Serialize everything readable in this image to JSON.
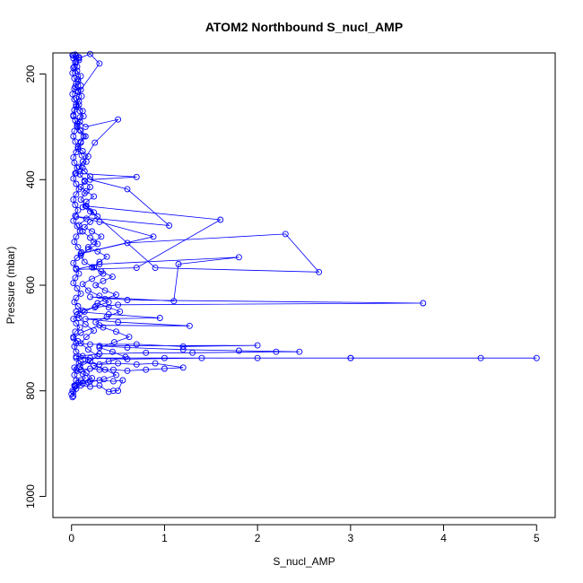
{
  "chart_data": {
    "type": "scatter",
    "title": "ATOM2 Northbound S_nucl_AMP",
    "xlabel": "S_nucl_AMP",
    "ylabel": "Pressure (mbar)",
    "xlim": [
      -0.2,
      5.2
    ],
    "ylim": [
      1040,
      160
    ],
    "y_reversed": true,
    "x_ticks": [
      0,
      1,
      2,
      3,
      4,
      5
    ],
    "y_ticks": [
      200,
      400,
      600,
      800,
      1000
    ],
    "grid": false,
    "legend": "none",
    "series": [
      {
        "style": "lines+markers",
        "color": "#0000ff",
        "points": [
          [
            0.02,
            810
          ],
          [
            0.01,
            800
          ],
          [
            0.03,
            790
          ],
          [
            0.05,
            780
          ],
          [
            0.1,
            780
          ],
          [
            0.2,
            782
          ],
          [
            0.3,
            780
          ],
          [
            0.45,
            782
          ],
          [
            0.55,
            780
          ],
          [
            0.5,
            800
          ],
          [
            0.45,
            800
          ],
          [
            0.4,
            802
          ],
          [
            0.3,
            790
          ],
          [
            0.2,
            792
          ],
          [
            0.1,
            790
          ],
          [
            0.03,
            770
          ],
          [
            0.05,
            760
          ],
          [
            0.1,
            760
          ],
          [
            0.2,
            758
          ],
          [
            0.3,
            760
          ],
          [
            0.45,
            760
          ],
          [
            0.6,
            762
          ],
          [
            0.8,
            760
          ],
          [
            1.0,
            758
          ],
          [
            1.2,
            756
          ],
          [
            0.9,
            748
          ],
          [
            0.7,
            750
          ],
          [
            0.5,
            748
          ],
          [
            0.3,
            750
          ],
          [
            0.1,
            745
          ],
          [
            0.05,
            738
          ],
          [
            1.0,
            738
          ],
          [
            2.0,
            738
          ],
          [
            3.0,
            738
          ],
          [
            4.4,
            738
          ],
          [
            5.0,
            738
          ],
          [
            3.0,
            738
          ],
          [
            1.4,
            738
          ],
          [
            0.6,
            740
          ],
          [
            0.2,
            738
          ],
          [
            0.05,
            735
          ],
          [
            0.3,
            730
          ],
          [
            0.8,
            728
          ],
          [
            1.3,
            728
          ],
          [
            2.2,
            726
          ],
          [
            2.45,
            726
          ],
          [
            1.8,
            724
          ],
          [
            1.2,
            722
          ],
          [
            0.6,
            718
          ],
          [
            0.3,
            715
          ],
          [
            2.0,
            714
          ],
          [
            1.2,
            716
          ],
          [
            0.7,
            712
          ],
          [
            0.2,
            712
          ],
          [
            0.05,
            710
          ],
          [
            0.02,
            700
          ],
          [
            0.1,
            690
          ],
          [
            0.3,
            676
          ],
          [
            1.27,
            677
          ],
          [
            0.5,
            670
          ],
          [
            0.15,
            664
          ],
          [
            0.95,
            662
          ],
          [
            0.4,
            655
          ],
          [
            0.05,
            650
          ],
          [
            0.25,
            642
          ],
          [
            0.5,
            637
          ],
          [
            3.78,
            634
          ],
          [
            0.6,
            628
          ],
          [
            0.2,
            622
          ],
          [
            1.1,
            630
          ],
          [
            1.15,
            560
          ],
          [
            1.8,
            547
          ],
          [
            0.3,
            560
          ],
          [
            0.05,
            570
          ],
          [
            0.7,
            567
          ],
          [
            1.6,
            476
          ],
          [
            0.15,
            450
          ],
          [
            0.9,
            567
          ],
          [
            2.66,
            575
          ],
          [
            2.3,
            503
          ],
          [
            0.6,
            520
          ],
          [
            0.1,
            540
          ],
          [
            0.88,
            508
          ],
          [
            0.3,
            480
          ],
          [
            0.05,
            470
          ],
          [
            1.05,
            487
          ],
          [
            0.6,
            418
          ],
          [
            0.2,
            400
          ],
          [
            0.7,
            395
          ],
          [
            0.05,
            388
          ],
          [
            0.25,
            330
          ],
          [
            0.5,
            286
          ],
          [
            0.15,
            300
          ],
          [
            0.02,
            280
          ],
          [
            0.1,
            230
          ],
          [
            0.3,
            180
          ],
          [
            0.2,
            162
          ],
          [
            0.08,
            170
          ],
          [
            0.02,
            165
          ]
        ]
      },
      {
        "style": "lines+markers",
        "color": "#0000ff",
        "points": [
          [
            0.01,
            812
          ],
          [
            0.02,
            802
          ],
          [
            0.04,
            792
          ],
          [
            0.08,
            784
          ],
          [
            0.15,
            776
          ],
          [
            0.12,
            768
          ],
          [
            0.06,
            762
          ],
          [
            0.03,
            756
          ],
          [
            0.08,
            748
          ],
          [
            0.18,
            742
          ],
          [
            0.12,
            734
          ],
          [
            0.05,
            726
          ],
          [
            0.03,
            716
          ],
          [
            0.07,
            706
          ],
          [
            0.02,
            698
          ],
          [
            0.04,
            688
          ],
          [
            0.09,
            680
          ],
          [
            0.05,
            672
          ],
          [
            0.02,
            664
          ],
          [
            0.06,
            656
          ],
          [
            0.12,
            648
          ],
          [
            0.07,
            640
          ],
          [
            0.03,
            632
          ],
          [
            0.05,
            624
          ],
          [
            0.1,
            616
          ],
          [
            0.06,
            606
          ],
          [
            0.02,
            596
          ],
          [
            0.04,
            586
          ],
          [
            0.08,
            578
          ],
          [
            0.05,
            568
          ],
          [
            0.02,
            558
          ],
          [
            0.06,
            548
          ],
          [
            0.11,
            538
          ],
          [
            0.07,
            528
          ],
          [
            0.03,
            518
          ],
          [
            0.05,
            508
          ],
          [
            0.09,
            498
          ],
          [
            0.06,
            488
          ],
          [
            0.02,
            478
          ],
          [
            0.04,
            468
          ],
          [
            0.07,
            458
          ],
          [
            0.04,
            448
          ],
          [
            0.02,
            438
          ],
          [
            0.05,
            428
          ],
          [
            0.08,
            418
          ],
          [
            0.05,
            408
          ],
          [
            0.02,
            398
          ],
          [
            0.04,
            388
          ],
          [
            0.06,
            378
          ],
          [
            0.03,
            368
          ],
          [
            0.02,
            358
          ],
          [
            0.05,
            348
          ],
          [
            0.07,
            338
          ],
          [
            0.04,
            328
          ],
          [
            0.02,
            318
          ],
          [
            0.03,
            308
          ],
          [
            0.06,
            298
          ],
          [
            0.04,
            288
          ],
          [
            0.02,
            278
          ],
          [
            0.03,
            268
          ],
          [
            0.05,
            258
          ],
          [
            0.03,
            248
          ],
          [
            0.01,
            238
          ],
          [
            0.03,
            228
          ],
          [
            0.05,
            218
          ],
          [
            0.03,
            208
          ],
          [
            0.01,
            198
          ],
          [
            0.02,
            188
          ],
          [
            0.04,
            178
          ],
          [
            0.02,
            170
          ],
          [
            0.01,
            164
          ]
        ]
      },
      {
        "style": "lines+markers",
        "color": "#0000ff",
        "points": [
          [
            0.0,
            806
          ],
          [
            0.05,
            796
          ],
          [
            0.12,
            786
          ],
          [
            0.22,
            776
          ],
          [
            0.16,
            766
          ],
          [
            0.09,
            754
          ],
          [
            0.2,
            744
          ],
          [
            0.28,
            734
          ],
          [
            0.18,
            722
          ],
          [
            0.1,
            710
          ],
          [
            0.16,
            698
          ],
          [
            0.24,
            686
          ],
          [
            0.15,
            674
          ],
          [
            0.08,
            662
          ],
          [
            0.14,
            650
          ],
          [
            0.26,
            640
          ],
          [
            0.4,
            632
          ],
          [
            0.3,
            620
          ],
          [
            0.18,
            610
          ],
          [
            0.12,
            598
          ],
          [
            0.22,
            588
          ],
          [
            0.34,
            578
          ],
          [
            0.24,
            566
          ],
          [
            0.14,
            556
          ],
          [
            0.1,
            544
          ],
          [
            0.18,
            532
          ],
          [
            0.28,
            522
          ],
          [
            0.2,
            510
          ],
          [
            0.12,
            498
          ],
          [
            0.08,
            486
          ],
          [
            0.16,
            474
          ],
          [
            0.24,
            462
          ],
          [
            0.16,
            450
          ],
          [
            0.1,
            438
          ],
          [
            0.14,
            426
          ],
          [
            0.2,
            414
          ],
          [
            0.14,
            402
          ],
          [
            0.09,
            390
          ],
          [
            0.12,
            378
          ],
          [
            0.16,
            366
          ],
          [
            0.11,
            354
          ],
          [
            0.07,
            342
          ],
          [
            0.1,
            330
          ],
          [
            0.13,
            318
          ],
          [
            0.09,
            306
          ],
          [
            0.06,
            294
          ],
          [
            0.09,
            282
          ],
          [
            0.12,
            270
          ],
          [
            0.08,
            258
          ],
          [
            0.05,
            246
          ],
          [
            0.07,
            234
          ],
          [
            0.1,
            222
          ],
          [
            0.07,
            210
          ],
          [
            0.04,
            198
          ],
          [
            0.06,
            186
          ],
          [
            0.08,
            174
          ],
          [
            0.05,
            166
          ]
        ]
      },
      {
        "style": "lines+markers",
        "color": "#0000ff",
        "points": [
          [
            0.04,
            790
          ],
          [
            0.18,
            784
          ],
          [
            0.35,
            778
          ],
          [
            0.48,
            770
          ],
          [
            0.36,
            760
          ],
          [
            0.24,
            752
          ],
          [
            0.4,
            744
          ],
          [
            0.58,
            736
          ],
          [
            0.44,
            726
          ],
          [
            0.3,
            718
          ],
          [
            0.46,
            708
          ],
          [
            0.62,
            698
          ],
          [
            0.48,
            688
          ],
          [
            0.34,
            680
          ],
          [
            0.26,
            670
          ],
          [
            0.38,
            660
          ],
          [
            0.52,
            650
          ],
          [
            0.4,
            642
          ],
          [
            0.28,
            634
          ],
          [
            0.36,
            626
          ],
          [
            0.48,
            618
          ],
          [
            0.36,
            610
          ],
          [
            0.26,
            600
          ],
          [
            0.34,
            592
          ],
          [
            0.44,
            584
          ],
          [
            0.32,
            574
          ],
          [
            0.22,
            566
          ],
          [
            0.3,
            556
          ],
          [
            0.38,
            546
          ],
          [
            0.28,
            536
          ],
          [
            0.18,
            528
          ],
          [
            0.24,
            518
          ],
          [
            0.32,
            508
          ],
          [
            0.22,
            498
          ],
          [
            0.14,
            490
          ],
          [
            0.2,
            480
          ],
          [
            0.28,
            470
          ],
          [
            0.2,
            460
          ],
          [
            0.12,
            452
          ],
          [
            0.16,
            442
          ],
          [
            0.24,
            432
          ],
          [
            0.16,
            422
          ],
          [
            0.1,
            414
          ],
          [
            0.14,
            404
          ],
          [
            0.2,
            394
          ],
          [
            0.14,
            384
          ],
          [
            0.08,
            376
          ],
          [
            0.12,
            366
          ],
          [
            0.18,
            356
          ],
          [
            0.12,
            346
          ],
          [
            0.07,
            338
          ],
          [
            0.1,
            328
          ],
          [
            0.15,
            318
          ],
          [
            0.1,
            308
          ],
          [
            0.06,
            300
          ],
          [
            0.09,
            290
          ],
          [
            0.13,
            280
          ],
          [
            0.09,
            270
          ],
          [
            0.05,
            262
          ],
          [
            0.08,
            252
          ],
          [
            0.11,
            242
          ],
          [
            0.07,
            232
          ],
          [
            0.04,
            224
          ],
          [
            0.07,
            214
          ],
          [
            0.1,
            204
          ],
          [
            0.06,
            194
          ],
          [
            0.03,
            186
          ],
          [
            0.05,
            176
          ],
          [
            0.08,
            168
          ],
          [
            0.04,
            163
          ]
        ]
      }
    ]
  }
}
